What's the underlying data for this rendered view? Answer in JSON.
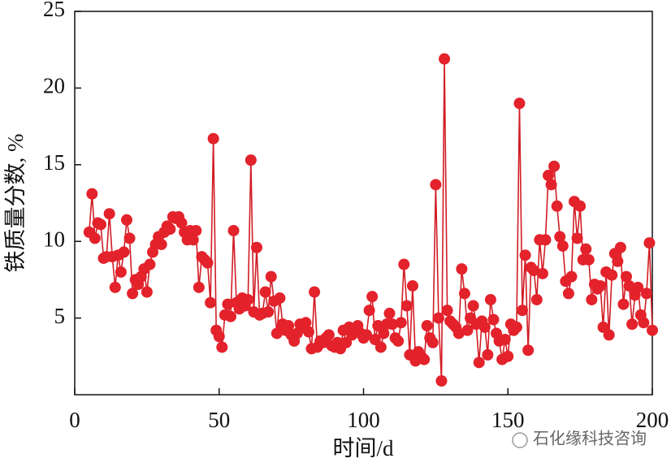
{
  "chart_data": {
    "type": "line",
    "xlabel": "时间/d",
    "ylabel": "铁质量分数, %",
    "watermark": "石化缘科技咨询",
    "xlim": [
      0,
      200
    ],
    "xticks": [
      0,
      50,
      100,
      150,
      200
    ],
    "ylim": [
      0,
      25
    ],
    "yticks": [
      5,
      10,
      15,
      20,
      25
    ],
    "x": [
      5,
      6,
      7,
      8,
      9,
      10,
      11,
      12,
      13,
      14,
      15,
      16,
      17,
      18,
      19,
      20,
      21,
      22,
      23,
      24,
      25,
      26,
      27,
      28,
      29,
      30,
      31,
      32,
      33,
      34,
      35,
      36,
      37,
      38,
      39,
      40,
      41,
      42,
      43,
      44,
      45,
      46,
      47,
      48,
      49,
      50,
      51,
      52,
      53,
      54,
      55,
      56,
      57,
      58,
      59,
      60,
      61,
      62,
      63,
      64,
      65,
      66,
      67,
      68,
      69,
      70,
      71,
      72,
      73,
      74,
      75,
      76,
      77,
      78,
      79,
      80,
      81,
      82,
      83,
      84,
      85,
      86,
      87,
      88,
      89,
      90,
      91,
      92,
      93,
      94,
      95,
      96,
      97,
      98,
      99,
      100,
      101,
      102,
      103,
      104,
      105,
      106,
      107,
      108,
      109,
      110,
      111,
      112,
      113,
      114,
      115,
      116,
      117,
      118,
      119,
      120,
      121,
      122,
      123,
      124,
      125,
      126,
      127,
      128,
      129,
      130,
      131,
      132,
      133,
      134,
      135,
      136,
      137,
      138,
      139,
      140,
      141,
      142,
      143,
      144,
      145,
      146,
      147,
      148,
      149,
      150,
      151,
      152,
      153,
      154,
      155,
      156,
      157,
      158,
      159,
      160,
      161,
      162,
      163,
      164,
      165,
      166,
      167,
      168,
      169,
      170,
      171,
      172,
      173,
      174,
      175,
      176,
      177,
      178,
      179,
      180,
      181,
      182,
      183,
      184,
      185,
      186,
      187,
      188,
      189,
      190,
      191,
      192,
      193,
      194,
      195,
      196,
      197,
      198,
      199,
      200
    ],
    "series": [
      {
        "color": "#e3222b",
        "line_color": "#d11d25",
        "values": [
          10.6,
          13.1,
          10.2,
          11.2,
          11.1,
          8.9,
          9.0,
          11.8,
          9.0,
          7.0,
          9.1,
          8.0,
          9.3,
          11.4,
          10.2,
          6.6,
          7.5,
          7.2,
          7.7,
          8.2,
          6.7,
          8.5,
          9.3,
          9.8,
          10.3,
          9.8,
          10.6,
          11.0,
          10.8,
          11.6,
          11.5,
          11.6,
          11.2,
          10.6,
          10.1,
          10.7,
          10.1,
          10.7,
          7.0,
          9.0,
          8.8,
          8.6,
          6.0,
          16.7,
          4.2,
          3.8,
          3.1,
          5.2,
          5.9,
          5.1,
          10.7,
          6.0,
          5.6,
          6.3,
          5.8,
          6.2,
          15.3,
          5.4,
          9.6,
          5.2,
          5.3,
          6.7,
          5.4,
          7.7,
          6.1,
          4.0,
          6.3,
          4.6,
          4.2,
          4.5,
          3.9,
          3.5,
          4.0,
          4.6,
          4.4,
          4.7,
          4.1,
          3.0,
          6.7,
          3.1,
          3.5,
          3.4,
          3.7,
          3.9,
          3.2,
          3.1,
          3.4,
          3.0,
          4.2,
          3.4,
          4.4,
          3.9,
          4.3,
          4.5,
          4.0,
          3.7,
          3.9,
          5.5,
          6.4,
          3.6,
          4.5,
          3.1,
          4.0,
          4.6,
          5.3,
          4.6,
          3.7,
          3.5,
          4.7,
          8.5,
          5.8,
          2.6,
          7.1,
          2.2,
          2.8,
          2.5,
          2.3,
          4.5,
          3.7,
          3.4,
          13.7,
          5.0,
          0.9,
          21.9,
          5.5,
          4.8,
          4.6,
          4.4,
          4.0,
          8.2,
          6.6,
          4.2,
          5.0,
          5.8,
          4.6,
          2.1,
          4.8,
          4.4,
          2.6,
          6.2,
          4.9,
          4.0,
          3.5,
          2.3,
          3.6,
          2.5,
          4.6,
          4.2,
          4.4,
          19.0,
          5.5,
          9.1,
          2.9,
          8.3,
          8.1,
          6.2,
          10.1,
          7.9,
          10.1,
          14.3,
          13.7,
          14.9,
          12.3,
          10.3,
          9.7,
          7.4,
          6.6,
          7.7,
          12.6,
          10.2,
          12.3,
          8.8,
          9.5,
          8.8,
          6.2,
          7.2,
          6.9,
          7.1,
          4.4,
          8.0,
          3.9,
          7.8,
          9.2,
          8.7,
          9.6,
          5.9,
          7.7,
          7.1,
          4.6,
          6.5,
          7.0,
          5.2,
          4.7,
          6.6,
          9.9,
          4.2
        ]
      }
    ]
  }
}
